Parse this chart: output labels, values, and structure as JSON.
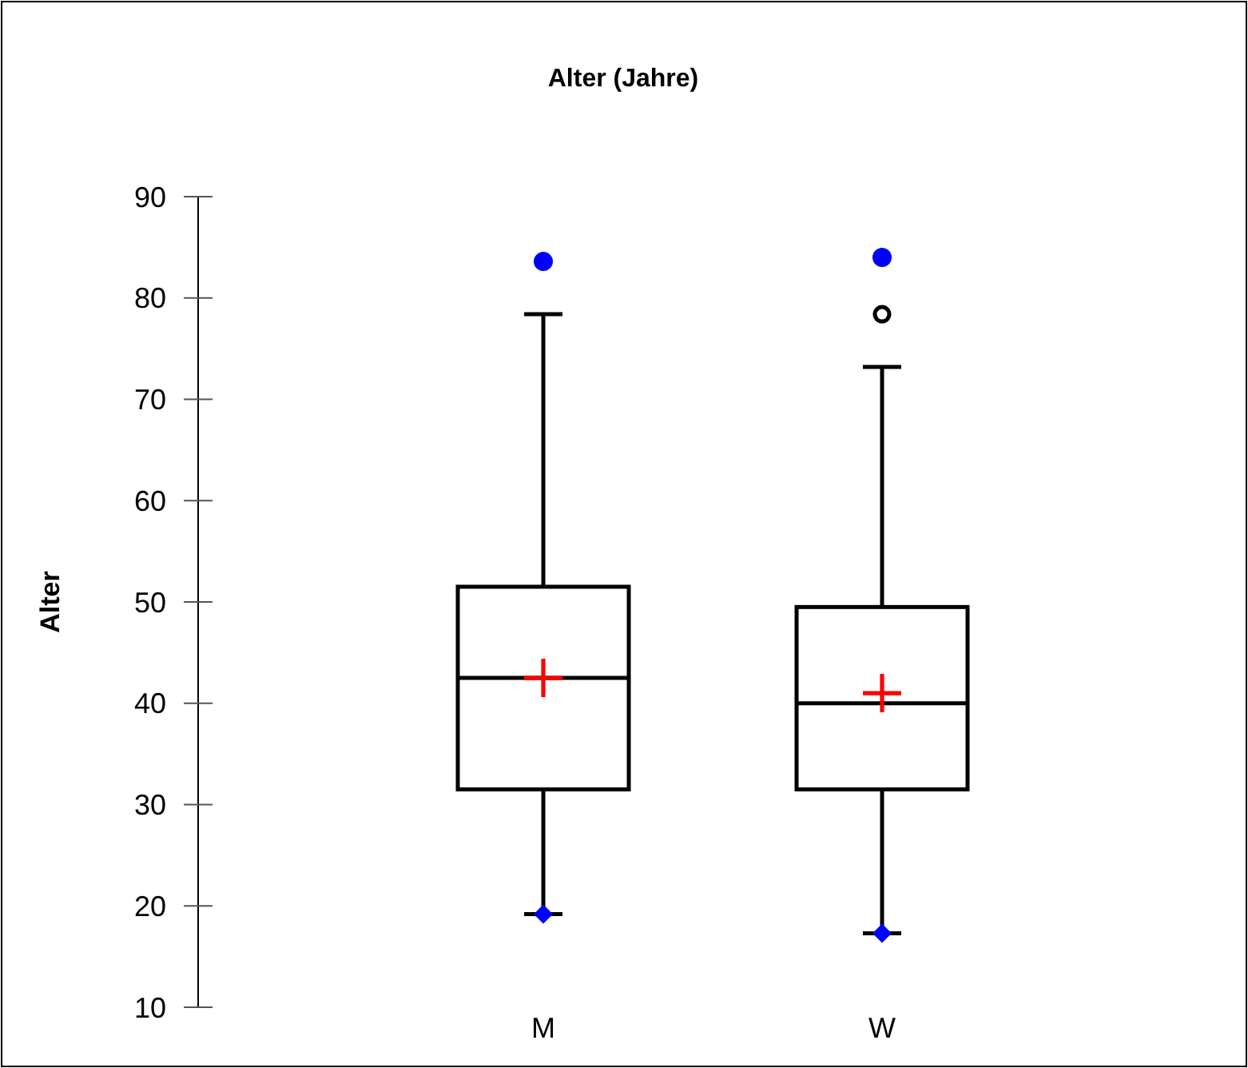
{
  "chart_data": {
    "type": "box",
    "title": "Alter (Jahre)",
    "ylabel": "Alter",
    "categories": [
      "M",
      "W"
    ],
    "boxes": [
      {
        "low": 19.2,
        "q1": 31.5,
        "median": 42.5,
        "q3": 51.5,
        "high": 78.4,
        "mean": 42.5
      },
      {
        "low": 17.3,
        "q1": 31.5,
        "median": 40,
        "q3": 49.5,
        "high": 73.2,
        "mean": 41,
        "outliers": [
          78.4
        ]
      }
    ],
    "series": [
      {
        "type": "scatter",
        "x": [
          "M",
          "W"
        ],
        "values": [
          19.2,
          17.3
        ],
        "color": "#0000ff",
        "marker": "diamond"
      },
      {
        "type": "scatter",
        "x": [
          "M",
          "W"
        ],
        "values": [
          83.6,
          84
        ],
        "color": "#0000ff",
        "marker": "circle"
      }
    ],
    "ylim": [
      10,
      90
    ],
    "yticks": [
      10,
      20,
      30,
      40,
      50,
      60,
      70,
      80,
      90
    ],
    "grid": false
  }
}
